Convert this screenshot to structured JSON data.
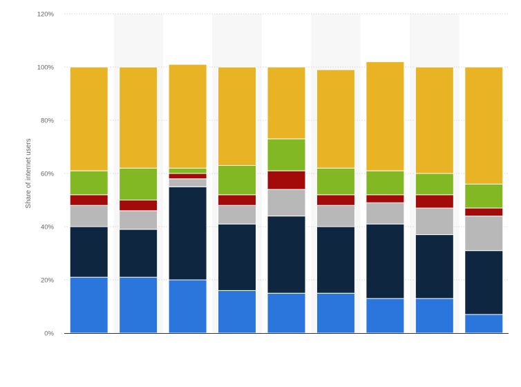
{
  "chart_data": {
    "type": "bar",
    "stacked": true,
    "title": "",
    "xlabel": "",
    "ylabel": "Share of internet users",
    "ylim": [
      0,
      120
    ],
    "yticks": [
      0,
      20,
      40,
      60,
      80,
      100,
      120
    ],
    "ytick_labels": [
      "0%",
      "20%",
      "40%",
      "60%",
      "80%",
      "100%",
      "120%"
    ],
    "grid": true,
    "legend": "none",
    "categories": [
      "",
      "",
      "",
      "",
      "",
      "",
      "",
      "",
      ""
    ],
    "series": [
      {
        "color": "#2a76dd",
        "values": [
          21,
          21,
          20,
          16,
          15,
          15,
          13,
          13,
          7
        ]
      },
      {
        "color": "#0f2640",
        "values": [
          19,
          18,
          35,
          25,
          29,
          25,
          28,
          24,
          24
        ]
      },
      {
        "color": "#b8b8b8",
        "values": [
          8,
          7,
          3,
          7,
          10,
          8,
          8,
          10,
          13
        ]
      },
      {
        "color": "#a30b0b",
        "values": [
          4,
          4,
          2,
          4,
          7,
          4,
          3,
          5,
          3
        ]
      },
      {
        "color": "#82b823",
        "values": [
          9,
          12,
          2,
          11,
          12,
          10,
          9,
          8,
          9
        ]
      },
      {
        "color": "#e8b325",
        "values": [
          39,
          38,
          39,
          37,
          27,
          37,
          41,
          40,
          44
        ]
      }
    ]
  }
}
